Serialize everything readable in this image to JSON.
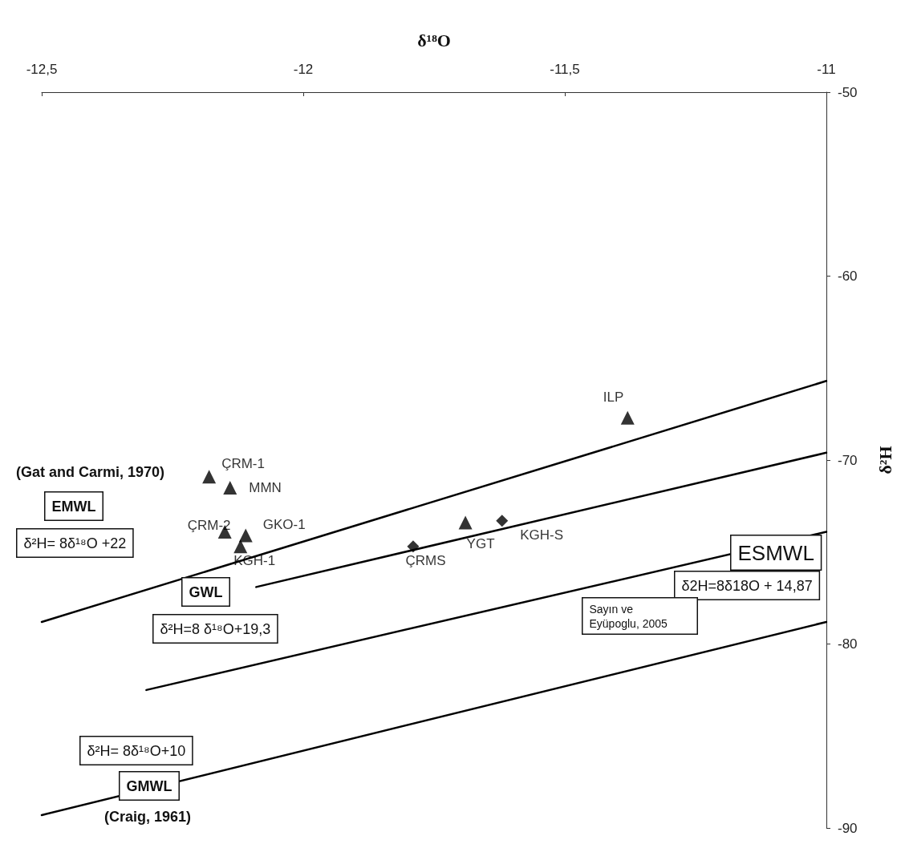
{
  "chart_data": {
    "type": "scatter",
    "xlabel": "δ¹⁸O",
    "ylabel": "δ²H",
    "xlim": [
      -12.5,
      -11
    ],
    "ylim": [
      -90,
      -50
    ],
    "xticks": [
      {
        "value": -12.5,
        "label": "-12,5"
      },
      -12,
      {
        "value": -11.5,
        "label": "-11,5"
      },
      -11
    ],
    "yticks": [
      -90,
      -80,
      -70,
      -60,
      -50
    ],
    "grid": false,
    "legend": false,
    "series": [
      {
        "type": "line",
        "color": "#000000",
        "marker": "none",
        "x": [
          -12.5,
          -11
        ],
        "values": [
          -78.8,
          -65.7
        ]
      },
      {
        "type": "line",
        "color": "#000000",
        "marker": "none",
        "x": [
          -12.09,
          -11
        ],
        "values": [
          -76.9,
          -69.6
        ]
      },
      {
        "type": "line",
        "color": "#000000",
        "marker": "none",
        "x": [
          -12.3,
          -11
        ],
        "values": [
          -82.5,
          -73.9
        ]
      },
      {
        "type": "line",
        "color": "#000000",
        "marker": "none",
        "x": [
          -12.5,
          -11
        ],
        "values": [
          -89.3,
          -78.8
        ]
      },
      {
        "name": "ÇRM-1",
        "color": "#000000",
        "marker": "triangle",
        "x": [
          -12.18
        ],
        "values": [
          -70.9
        ]
      },
      {
        "name": "MMN",
        "color": "#000000",
        "marker": "triangle",
        "x": [
          -12.14
        ],
        "values": [
          -71.5
        ]
      },
      {
        "name": "ÇRM-2",
        "color": "#000000",
        "marker": "triangle",
        "x": [
          -12.15
        ],
        "values": [
          -73.9
        ]
      },
      {
        "name": "GKO-1",
        "color": "#000000",
        "marker": "triangle",
        "x": [
          -12.11
        ],
        "values": [
          -74.1
        ]
      },
      {
        "name": "KGH-1",
        "color": "#000000",
        "marker": "triangle",
        "x": [
          -12.12
        ],
        "values": [
          -74.7
        ]
      },
      {
        "name": "ÇRMS",
        "color": "#000000",
        "marker": "diamond",
        "x": [
          -11.79
        ],
        "values": [
          -74.7
        ]
      },
      {
        "name": "YGT",
        "color": "#000000",
        "marker": "triangle",
        "x": [
          -11.69
        ],
        "values": [
          -73.4
        ]
      },
      {
        "name": "KGH-S",
        "color": "#000000",
        "marker": "diamond",
        "x": [
          -11.62
        ],
        "values": [
          -73.3
        ]
      },
      {
        "name": "ILP",
        "color": "#000000",
        "marker": "triangle",
        "x": [
          -11.38
        ],
        "values": [
          -67.7
        ]
      }
    ],
    "annotations": [
      "(Gat and Carmi, 1970)",
      "EMWL",
      "δ²H= 8δ¹⁸O +22",
      "GWL",
      "δ²H=8 δ¹⁸O+19,3",
      "ESMWL",
      "δ2H=8δ18O + 14,87",
      "Sayın ve Eyüpoglu, 2005",
      "δ²H= 8δ¹⁸O+10",
      "GMWL",
      "(Craig, 1961)"
    ]
  }
}
